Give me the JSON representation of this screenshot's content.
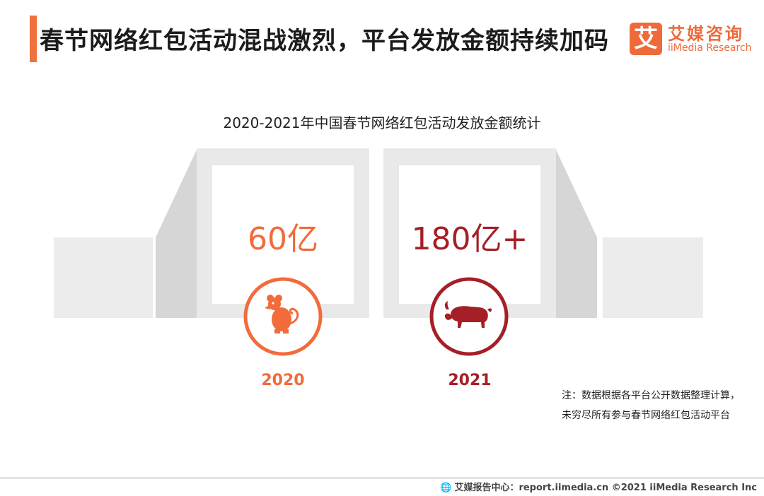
{
  "header": {
    "title": "春节网络红包活动混战激烈，平台发放金额持续加码",
    "accent": "#f0703e"
  },
  "logo": {
    "mark": "艾",
    "name_cn": "艾媒咨询",
    "name_en": "iiMedia Research"
  },
  "chart_data": {
    "type": "bar",
    "title": "2020-2021年中国春节网络红包活动发放金额统计",
    "categories": [
      "2020",
      "2021"
    ],
    "values": [
      60,
      180
    ],
    "value_labels": [
      "60亿",
      "180亿+"
    ],
    "unit": "亿",
    "colors": [
      "#f26b3b",
      "#a51f26"
    ],
    "icons": [
      "rat-icon",
      "ox-icon"
    ]
  },
  "note": {
    "line1": "注：数据根据各平台公开数据整理计算，",
    "line2": "未穷尽所有参与春节网络红包活动平台"
  },
  "footer": {
    "globe": "🌐",
    "text": "艾媒报告中心：report.iimedia.cn ©2021 iiMedia Research Inc"
  }
}
